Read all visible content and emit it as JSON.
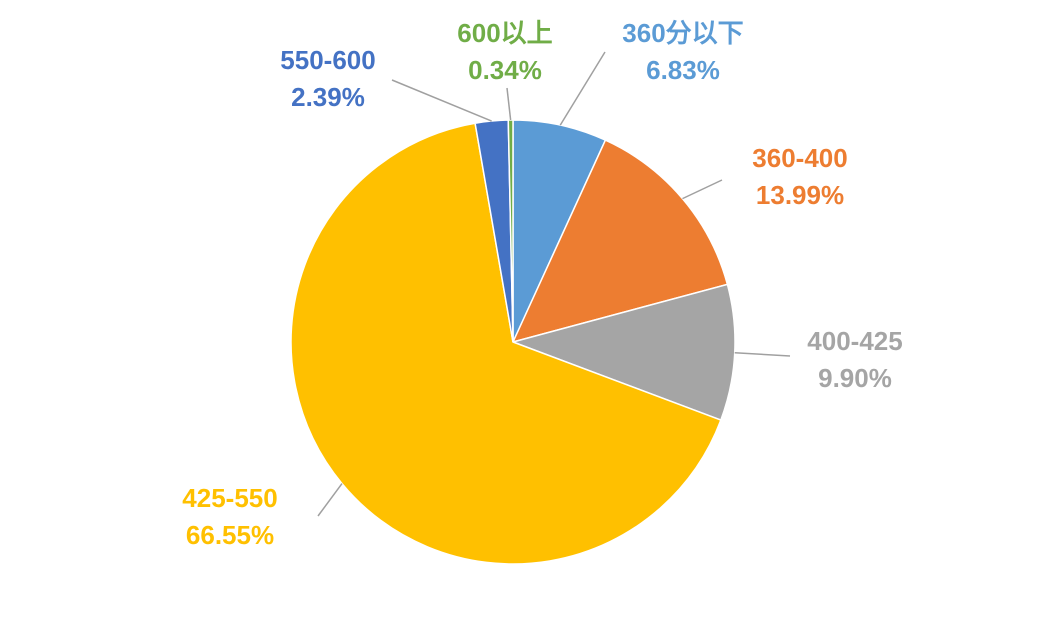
{
  "chart_data": {
    "type": "pie",
    "categories": [
      "360分以下",
      "360-400",
      "400-425",
      "425-550",
      "550-600",
      "600以上"
    ],
    "values": [
      6.83,
      13.99,
      9.9,
      66.55,
      2.39,
      0.34
    ],
    "value_labels": [
      "6.83%",
      "13.99%",
      "9.90%",
      "66.55%",
      "2.39%",
      "0.34%"
    ],
    "colors": [
      "#5b9bd5",
      "#ed7d31",
      "#a5a5a5",
      "#ffc000",
      "#4472c4",
      "#70ad47"
    ]
  }
}
